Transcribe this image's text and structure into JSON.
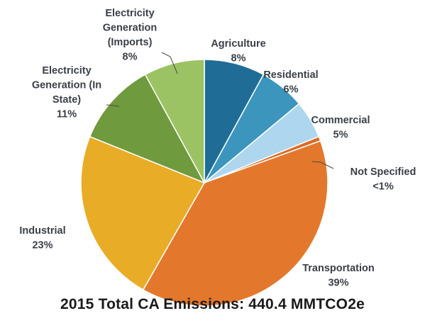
{
  "chart_data": {
    "type": "pie",
    "title": "2015 Total CA Emissions: 440.4 MMTCO2e",
    "slices": [
      {
        "label": [
          "Agriculture"
        ],
        "pct_text": "8%",
        "value": 8,
        "color": "#1f6d96"
      },
      {
        "label": [
          "Residential"
        ],
        "pct_text": "6%",
        "value": 6,
        "color": "#3b95bd"
      },
      {
        "label": [
          "Commercial"
        ],
        "pct_text": "5%",
        "value": 5,
        "color": "#aed6ee"
      },
      {
        "label": [
          "Not Specified"
        ],
        "pct_text": "<1%",
        "value": 0.6,
        "color": "#dd6a23"
      },
      {
        "label": [
          "Transportation"
        ],
        "pct_text": "39%",
        "value": 39,
        "color": "#e3782c"
      },
      {
        "label": [
          "Industrial"
        ],
        "pct_text": "23%",
        "value": 23,
        "color": "#e9ac27"
      },
      {
        "label": [
          "Electricity",
          "Generation (In",
          "State)"
        ],
        "pct_text": "11%",
        "value": 11,
        "color": "#6f9a3d"
      },
      {
        "label": [
          "Electricity",
          "Generation",
          "(Imports)"
        ],
        "pct_text": "8%",
        "value": 8,
        "color": "#9bc363"
      }
    ]
  }
}
